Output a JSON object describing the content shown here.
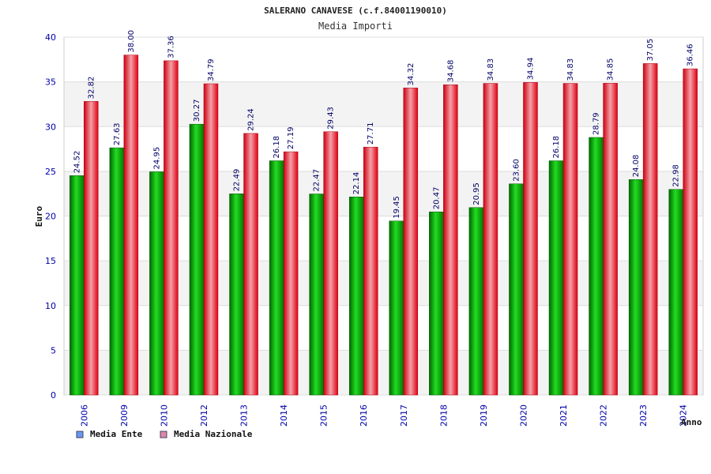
{
  "chart_data": {
    "type": "bar",
    "title": "SALERANO CANAVESE (c.f.84001190010)",
    "subtitle": "Media Importi",
    "xlabel": "Anno",
    "ylabel": "Euro",
    "ylim": [
      0,
      40
    ],
    "yticks": [
      0,
      5,
      10,
      15,
      20,
      25,
      30,
      35,
      40
    ],
    "grid": true,
    "legend_placement": "bottom-left",
    "categories": [
      "2006",
      "2009",
      "2010",
      "2012",
      "2013",
      "2014",
      "2015",
      "2016",
      "2017",
      "2018",
      "2019",
      "2020",
      "2021",
      "2022",
      "2023",
      "2024"
    ],
    "series": [
      {
        "name": "Media Ente",
        "color": "#00b000",
        "legend_color": "#6699ee",
        "values": [
          24.52,
          27.63,
          24.95,
          30.27,
          22.49,
          26.18,
          22.47,
          22.14,
          19.45,
          20.47,
          20.95,
          23.6,
          26.18,
          28.79,
          24.08,
          22.98
        ],
        "labels": [
          "24.52",
          "27.63",
          "24.95",
          "30.27",
          "22.49",
          "26.18",
          "22.47",
          "22.14",
          "19.45",
          "20.47",
          "20.95",
          "23.60",
          "26.18",
          "28.79",
          "24.08",
          "22.98"
        ]
      },
      {
        "name": "Media Nazionale",
        "color": "#ee1122",
        "legend_color": "#dd88aa",
        "values": [
          32.82,
          38.0,
          37.36,
          34.79,
          29.24,
          27.19,
          29.43,
          27.71,
          34.32,
          34.68,
          34.83,
          34.94,
          34.83,
          34.85,
          37.05,
          36.46
        ],
        "labels": [
          "32.82",
          "38.00",
          "37.36",
          "34.79",
          "29.24",
          "27.19",
          "29.43",
          "27.71",
          "34.32",
          "34.68",
          "34.83",
          "34.94",
          "34.83",
          "34.85",
          "37.05",
          "36.46"
        ]
      }
    ]
  }
}
